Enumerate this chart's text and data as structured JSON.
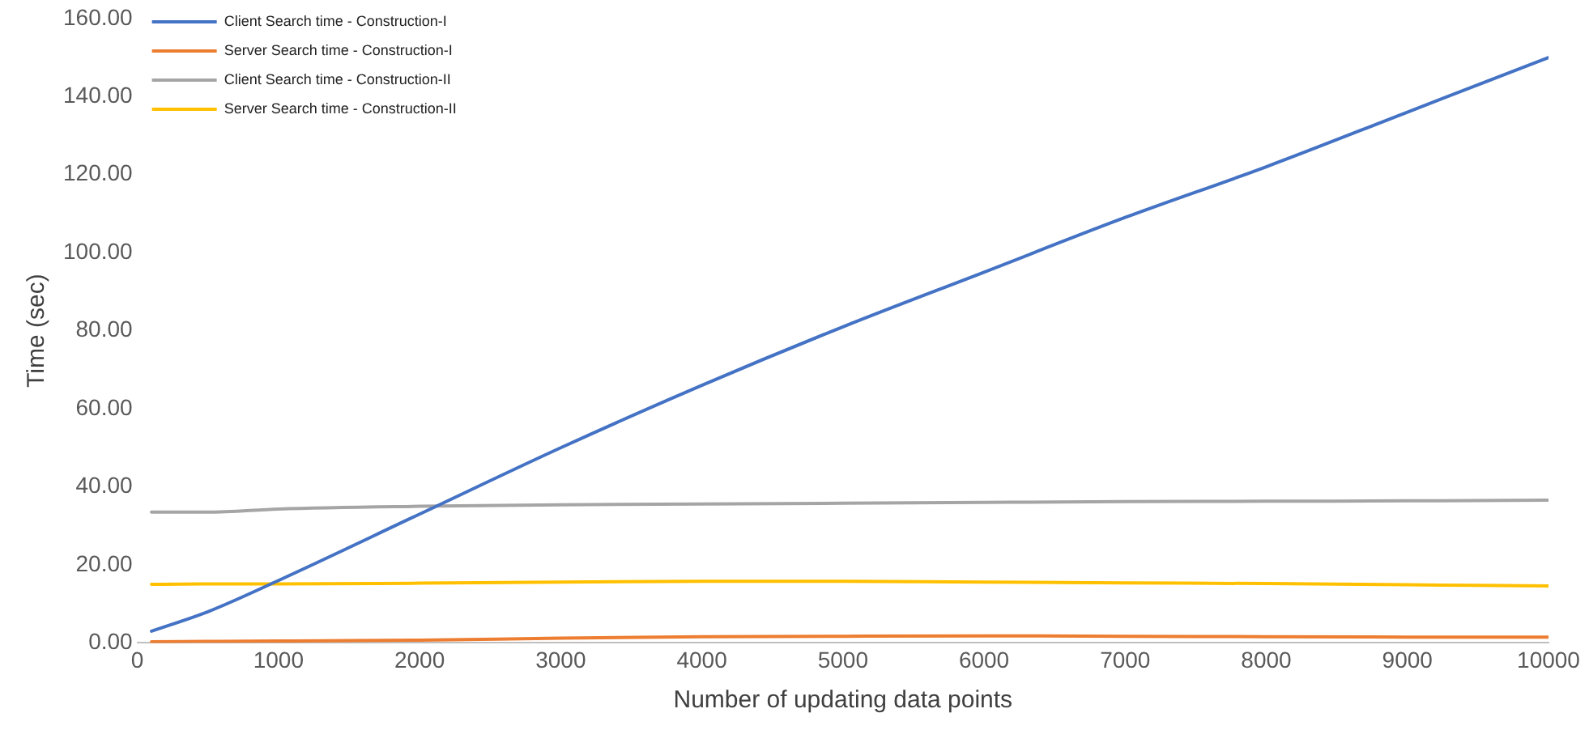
{
  "chart_data": {
    "type": "line",
    "xlabel": "Number of updating data points",
    "ylabel": "Time (sec)",
    "x": [
      100,
      500,
      1000,
      2000,
      3000,
      4000,
      5000,
      6000,
      7000,
      8000,
      9000,
      10000
    ],
    "series": [
      {
        "name": "Client Search time - Construction-I",
        "color": "#4472c4",
        "values": [
          3,
          8,
          16,
          33,
          50,
          66,
          81,
          95,
          109,
          122,
          136,
          150
        ]
      },
      {
        "name": "Server Search time - Construction-I",
        "color": "#ed7d31",
        "values": [
          0.3,
          0.4,
          0.5,
          0.7,
          1.2,
          1.6,
          1.7,
          1.8,
          1.7,
          1.6,
          1.5,
          1.5
        ]
      },
      {
        "name": "Client Search time - Construction-II",
        "color": "#a5a5a5",
        "values": [
          33.5,
          33.5,
          34.3,
          35,
          35.4,
          35.6,
          35.8,
          36,
          36.2,
          36.3,
          36.4,
          36.6
        ]
      },
      {
        "name": "Server Search time - Construction-II",
        "color": "#ffc000",
        "values": [
          15,
          15.1,
          15.1,
          15.3,
          15.6,
          15.8,
          15.8,
          15.6,
          15.4,
          15.2,
          14.9,
          14.6
        ]
      }
    ],
    "xlim": [
      0,
      10000
    ],
    "xticks": [
      0,
      1000,
      2000,
      3000,
      4000,
      5000,
      6000,
      7000,
      8000,
      9000,
      10000
    ],
    "ylim": [
      0,
      160
    ],
    "yticks": [
      {
        "value": 0,
        "label": "0.00"
      },
      {
        "value": 20,
        "label": "20.00"
      },
      {
        "value": 40,
        "label": "40.00"
      },
      {
        "value": 60,
        "label": "60.00"
      },
      {
        "value": 80,
        "label": "80.00"
      },
      {
        "value": 100,
        "label": "100.00"
      },
      {
        "value": 120,
        "label": "120.00"
      },
      {
        "value": 140,
        "label": "140.00"
      },
      {
        "value": 160,
        "label": "160.00"
      }
    ],
    "grid": false,
    "legend": "top left",
    "marker": "none",
    "line_style": "solid"
  }
}
